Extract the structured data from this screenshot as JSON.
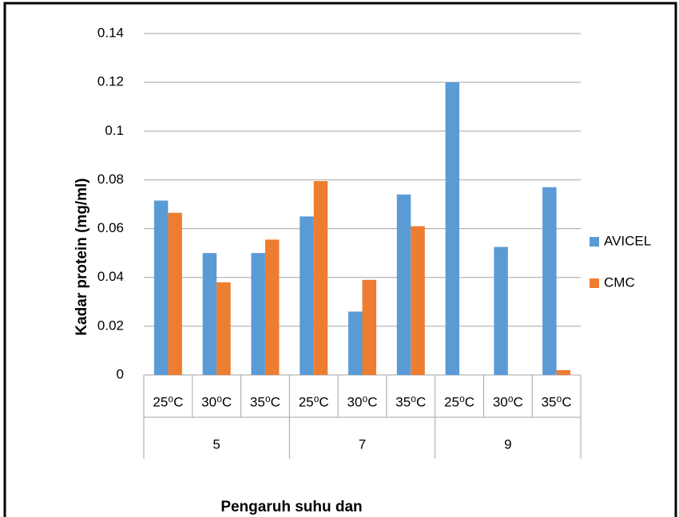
{
  "chart_data": {
    "type": "bar",
    "y_label": "Kadar protein (mg/ml)",
    "x_label": "Pengaruh suhu dan",
    "categories": [
      "25⁰C",
      "30⁰C",
      "35⁰C",
      "25⁰C",
      "30⁰C",
      "35⁰C",
      "25⁰C",
      "30⁰C",
      "35⁰C"
    ],
    "groups": [
      "5",
      "7",
      "9"
    ],
    "series": [
      {
        "name": "AVICEL",
        "color": "#5b9bd5",
        "values": [
          0.0715,
          0.05,
          0.05,
          0.065,
          0.026,
          0.074,
          0.12,
          0.0525,
          0.077
        ]
      },
      {
        "name": "CMC",
        "color": "#ed7d31",
        "values": [
          0.0665,
          0.038,
          0.0555,
          0.0795,
          0.039,
          0.061,
          0,
          0,
          0.002
        ]
      }
    ],
    "ylim": [
      0,
      0.14
    ],
    "yticks": [
      0,
      0.02,
      0.04,
      0.06,
      0.08,
      0.1,
      0.12,
      0.14
    ],
    "grid": true,
    "legend": "right"
  }
}
